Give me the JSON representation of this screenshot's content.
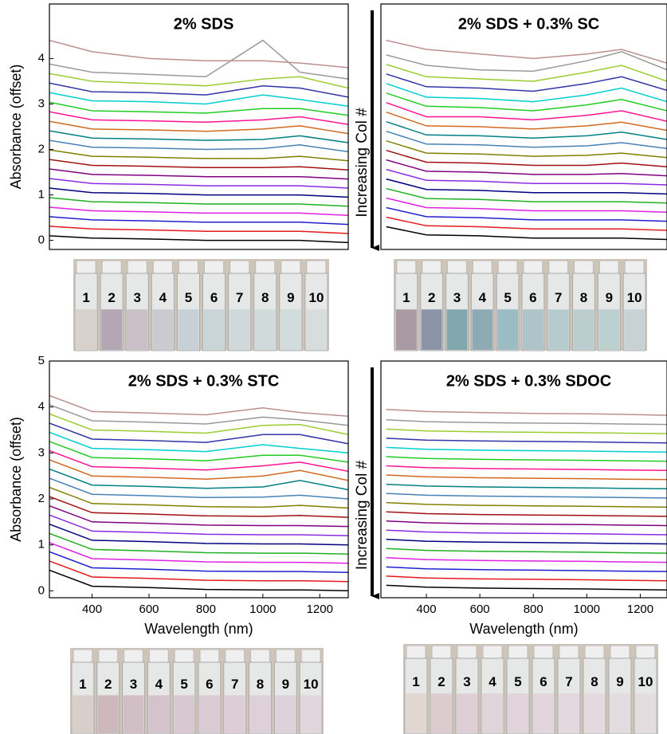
{
  "chart_data": [
    {
      "type": "line",
      "title": "2% SDS",
      "ylabel": "Absorbance (offset)",
      "xlim": [
        250,
        1300
      ],
      "ylim": [
        -0.2,
        5.2
      ],
      "yticks": [
        0,
        1,
        2,
        3,
        4
      ],
      "x": [
        250,
        400,
        600,
        800,
        1000,
        1130,
        1300
      ],
      "series": [
        {
          "color": "#000000",
          "values": [
            0.1,
            0.05,
            0.03,
            0,
            0,
            0,
            -0.05
          ]
        },
        {
          "color": "#e41a1c",
          "values": [
            0.31,
            0.25,
            0.23,
            0.2,
            0.2,
            0.2,
            0.15
          ]
        },
        {
          "color": "#1f1fd0",
          "values": [
            0.52,
            0.45,
            0.43,
            0.4,
            0.4,
            0.4,
            0.35
          ]
        },
        {
          "color": "#e020e0",
          "values": [
            0.73,
            0.65,
            0.63,
            0.6,
            0.6,
            0.6,
            0.55
          ]
        },
        {
          "color": "#20b020",
          "values": [
            0.94,
            0.85,
            0.83,
            0.8,
            0.8,
            0.8,
            0.75
          ]
        },
        {
          "color": "#000080",
          "values": [
            1.15,
            1.05,
            1.03,
            1.0,
            1.0,
            1.0,
            0.95
          ]
        },
        {
          "color": "#8a2be2",
          "values": [
            1.36,
            1.25,
            1.23,
            1.2,
            1.2,
            1.2,
            1.15
          ]
        },
        {
          "color": "#800080",
          "values": [
            1.57,
            1.45,
            1.43,
            1.4,
            1.4,
            1.4,
            1.35
          ]
        },
        {
          "color": "#a01010",
          "values": [
            1.78,
            1.65,
            1.63,
            1.6,
            1.6,
            1.62,
            1.55
          ]
        },
        {
          "color": "#808000",
          "values": [
            1.99,
            1.85,
            1.83,
            1.8,
            1.8,
            1.85,
            1.75
          ]
        },
        {
          "color": "#4682b4",
          "values": [
            2.2,
            2.05,
            2.03,
            2.0,
            2.02,
            2.1,
            1.95
          ]
        },
        {
          "color": "#008080",
          "values": [
            2.41,
            2.25,
            2.23,
            2.2,
            2.22,
            2.3,
            2.15
          ]
        },
        {
          "color": "#d2691e",
          "values": [
            2.62,
            2.45,
            2.43,
            2.4,
            2.45,
            2.52,
            2.35
          ]
        },
        {
          "color": "#ff1493",
          "values": [
            2.83,
            2.65,
            2.63,
            2.6,
            2.65,
            2.72,
            2.55
          ]
        },
        {
          "color": "#22cc22",
          "values": [
            3.04,
            2.85,
            2.83,
            2.8,
            2.9,
            2.9,
            2.75
          ]
        },
        {
          "color": "#00ced1",
          "values": [
            3.25,
            3.07,
            3.05,
            3.0,
            3.2,
            3.1,
            2.95
          ]
        },
        {
          "color": "#3333aa",
          "values": [
            3.46,
            3.27,
            3.25,
            3.2,
            3.4,
            3.35,
            3.15
          ]
        },
        {
          "color": "#9acd32",
          "values": [
            3.67,
            3.5,
            3.45,
            3.4,
            3.55,
            3.6,
            3.35
          ]
        },
        {
          "color": "#999999",
          "values": [
            3.88,
            3.7,
            3.65,
            3.6,
            4.4,
            3.7,
            3.55
          ]
        },
        {
          "color": "#bc8f8f",
          "values": [
            4.4,
            4.15,
            4.0,
            3.95,
            3.95,
            3.9,
            3.8
          ]
        }
      ]
    },
    {
      "type": "line",
      "title": "2% SDS + 0.3% SC",
      "annotation": "Increasing Col #",
      "xlim": [
        230,
        1300
      ],
      "ylim": [
        -0.2,
        5.2
      ],
      "x": [
        250,
        400,
        600,
        800,
        1000,
        1130,
        1300
      ],
      "series": [
        {
          "color": "#000000",
          "values": [
            0.3,
            0.12,
            0.1,
            0.05,
            0.05,
            0.05,
            0.02
          ]
        },
        {
          "color": "#e41a1c",
          "values": [
            0.51,
            0.32,
            0.3,
            0.25,
            0.25,
            0.25,
            0.22
          ]
        },
        {
          "color": "#1f1fd0",
          "values": [
            0.72,
            0.52,
            0.5,
            0.45,
            0.45,
            0.45,
            0.42
          ]
        },
        {
          "color": "#e020e0",
          "values": [
            0.93,
            0.72,
            0.7,
            0.65,
            0.65,
            0.65,
            0.62
          ]
        },
        {
          "color": "#20b020",
          "values": [
            1.14,
            0.92,
            0.9,
            0.85,
            0.85,
            0.85,
            0.82
          ]
        },
        {
          "color": "#000080",
          "values": [
            1.35,
            1.12,
            1.1,
            1.05,
            1.05,
            1.05,
            1.02
          ]
        },
        {
          "color": "#8a2be2",
          "values": [
            1.56,
            1.32,
            1.3,
            1.25,
            1.25,
            1.25,
            1.22
          ]
        },
        {
          "color": "#800080",
          "values": [
            1.77,
            1.52,
            1.5,
            1.45,
            1.45,
            1.47,
            1.42
          ]
        },
        {
          "color": "#a01010",
          "values": [
            1.98,
            1.72,
            1.7,
            1.65,
            1.65,
            1.7,
            1.62
          ]
        },
        {
          "color": "#808000",
          "values": [
            2.19,
            1.92,
            1.9,
            1.85,
            1.87,
            1.92,
            1.82
          ]
        },
        {
          "color": "#4682b4",
          "values": [
            2.4,
            2.12,
            2.1,
            2.05,
            2.08,
            2.15,
            2.02
          ]
        },
        {
          "color": "#008080",
          "values": [
            2.61,
            2.32,
            2.3,
            2.25,
            2.3,
            2.38,
            2.22
          ]
        },
        {
          "color": "#d2691e",
          "values": [
            2.82,
            2.52,
            2.5,
            2.45,
            2.52,
            2.6,
            2.42
          ]
        },
        {
          "color": "#ff1493",
          "values": [
            3.03,
            2.72,
            2.72,
            2.65,
            2.75,
            2.85,
            2.62
          ]
        },
        {
          "color": "#22cc22",
          "values": [
            3.24,
            2.95,
            2.92,
            2.85,
            2.98,
            3.1,
            2.85
          ]
        },
        {
          "color": "#00ced1",
          "values": [
            3.45,
            3.15,
            3.12,
            3.05,
            3.2,
            3.35,
            3.05
          ]
        },
        {
          "color": "#3333aa",
          "values": [
            3.66,
            3.38,
            3.35,
            3.28,
            3.45,
            3.6,
            3.3
          ]
        },
        {
          "color": "#9acd32",
          "values": [
            3.87,
            3.6,
            3.55,
            3.5,
            3.7,
            3.85,
            3.5
          ]
        },
        {
          "color": "#999999",
          "values": [
            4.08,
            3.85,
            3.75,
            3.72,
            3.95,
            4.15,
            3.75
          ]
        },
        {
          "color": "#bc8f8f",
          "values": [
            4.4,
            4.2,
            4.1,
            4.0,
            4.1,
            4.2,
            3.9
          ]
        }
      ]
    },
    {
      "type": "line",
      "title": "2% SDS + 0.3% STC",
      "ylabel": "Absorbance (offset)",
      "xlabel": "Wavelength (nm)",
      "xlim": [
        250,
        1300
      ],
      "ylim": [
        -0.15,
        5
      ],
      "yticks": [
        0,
        1,
        2,
        3,
        4,
        5
      ],
      "xticks": [
        400,
        600,
        800,
        1000,
        1200
      ],
      "x": [
        250,
        400,
        600,
        800,
        1000,
        1130,
        1300
      ],
      "series": [
        {
          "color": "#000000",
          "values": [
            0.45,
            0.1,
            0.07,
            0.03,
            0.02,
            0.02,
            0
          ]
        },
        {
          "color": "#e41a1c",
          "values": [
            0.65,
            0.3,
            0.27,
            0.23,
            0.22,
            0.22,
            0.2
          ]
        },
        {
          "color": "#1f1fd0",
          "values": [
            0.85,
            0.5,
            0.47,
            0.43,
            0.42,
            0.42,
            0.4
          ]
        },
        {
          "color": "#e020e0",
          "values": [
            1.05,
            0.7,
            0.67,
            0.63,
            0.62,
            0.62,
            0.6
          ]
        },
        {
          "color": "#20b020",
          "values": [
            1.25,
            0.9,
            0.87,
            0.83,
            0.82,
            0.82,
            0.8
          ]
        },
        {
          "color": "#000080",
          "values": [
            1.45,
            1.1,
            1.07,
            1.03,
            1.02,
            1.02,
            1.0
          ]
        },
        {
          "color": "#8a2be2",
          "values": [
            1.65,
            1.3,
            1.27,
            1.23,
            1.22,
            1.22,
            1.2
          ]
        },
        {
          "color": "#800080",
          "values": [
            1.85,
            1.5,
            1.47,
            1.43,
            1.42,
            1.42,
            1.4
          ]
        },
        {
          "color": "#a01010",
          "values": [
            2.05,
            1.7,
            1.67,
            1.63,
            1.62,
            1.64,
            1.6
          ]
        },
        {
          "color": "#808000",
          "values": [
            2.25,
            1.9,
            1.87,
            1.83,
            1.82,
            1.86,
            1.8
          ]
        },
        {
          "color": "#4682b4",
          "values": [
            2.45,
            2.1,
            2.07,
            2.03,
            2.04,
            2.08,
            2.0
          ]
        },
        {
          "color": "#008080",
          "values": [
            2.65,
            2.3,
            2.27,
            2.23,
            2.26,
            2.4,
            2.2
          ]
        },
        {
          "color": "#d2691e",
          "values": [
            2.85,
            2.5,
            2.47,
            2.43,
            2.5,
            2.62,
            2.4
          ]
        },
        {
          "color": "#ff1493",
          "values": [
            3.05,
            2.7,
            2.67,
            2.63,
            2.72,
            2.8,
            2.6
          ]
        },
        {
          "color": "#22cc22",
          "values": [
            3.25,
            2.9,
            2.87,
            2.83,
            2.95,
            2.95,
            2.8
          ]
        },
        {
          "color": "#00ced1",
          "values": [
            3.45,
            3.1,
            3.07,
            3.03,
            3.18,
            3.1,
            3.0
          ]
        },
        {
          "color": "#3333aa",
          "values": [
            3.65,
            3.3,
            3.27,
            3.23,
            3.4,
            3.4,
            3.2
          ]
        },
        {
          "color": "#9acd32",
          "values": [
            3.85,
            3.5,
            3.47,
            3.43,
            3.6,
            3.62,
            3.4
          ]
        },
        {
          "color": "#999999",
          "values": [
            4.05,
            3.7,
            3.67,
            3.63,
            3.78,
            3.72,
            3.6
          ]
        },
        {
          "color": "#bc8f8f",
          "values": [
            4.25,
            3.9,
            3.87,
            3.83,
            3.98,
            3.88,
            3.8
          ]
        }
      ]
    },
    {
      "type": "line",
      "title": "2% SDS + 0.3% SDOC",
      "annotation": "Increasing Col #",
      "xlabel": "Wavelength (nm)",
      "xlim": [
        230,
        1300
      ],
      "ylim": [
        -0.15,
        5
      ],
      "xticks": [
        400,
        600,
        800,
        1000,
        1200
      ],
      "x": [
        250,
        400,
        600,
        800,
        1000,
        1130,
        1300
      ],
      "series": [
        {
          "color": "#000000",
          "values": [
            0.12,
            0.08,
            0.06,
            0.05,
            0.04,
            0.03,
            0.02
          ]
        },
        {
          "color": "#e41a1c",
          "values": [
            0.32,
            0.28,
            0.26,
            0.25,
            0.24,
            0.23,
            0.22
          ]
        },
        {
          "color": "#1f1fd0",
          "values": [
            0.52,
            0.48,
            0.46,
            0.45,
            0.44,
            0.43,
            0.42
          ]
        },
        {
          "color": "#e020e0",
          "values": [
            0.72,
            0.68,
            0.66,
            0.65,
            0.64,
            0.63,
            0.62
          ]
        },
        {
          "color": "#20b020",
          "values": [
            0.92,
            0.88,
            0.86,
            0.85,
            0.84,
            0.83,
            0.82
          ]
        },
        {
          "color": "#000080",
          "values": [
            1.12,
            1.08,
            1.06,
            1.05,
            1.04,
            1.03,
            1.02
          ]
        },
        {
          "color": "#8a2be2",
          "values": [
            1.32,
            1.28,
            1.26,
            1.25,
            1.24,
            1.23,
            1.22
          ]
        },
        {
          "color": "#800080",
          "values": [
            1.52,
            1.48,
            1.46,
            1.45,
            1.44,
            1.43,
            1.42
          ]
        },
        {
          "color": "#a01010",
          "values": [
            1.72,
            1.68,
            1.66,
            1.65,
            1.64,
            1.63,
            1.62
          ]
        },
        {
          "color": "#808000",
          "values": [
            1.92,
            1.88,
            1.86,
            1.85,
            1.84,
            1.83,
            1.82
          ]
        },
        {
          "color": "#4682b4",
          "values": [
            2.12,
            2.08,
            2.06,
            2.05,
            2.04,
            2.03,
            2.02
          ]
        },
        {
          "color": "#008080",
          "values": [
            2.32,
            2.28,
            2.26,
            2.25,
            2.24,
            2.23,
            2.22
          ]
        },
        {
          "color": "#d2691e",
          "values": [
            2.52,
            2.48,
            2.46,
            2.45,
            2.44,
            2.43,
            2.42
          ]
        },
        {
          "color": "#ff1493",
          "values": [
            2.72,
            2.68,
            2.66,
            2.65,
            2.64,
            2.63,
            2.62
          ]
        },
        {
          "color": "#22cc22",
          "values": [
            2.92,
            2.88,
            2.86,
            2.85,
            2.84,
            2.83,
            2.82
          ]
        },
        {
          "color": "#00ced1",
          "values": [
            3.12,
            3.08,
            3.06,
            3.05,
            3.04,
            3.03,
            3.02
          ]
        },
        {
          "color": "#3333aa",
          "values": [
            3.32,
            3.28,
            3.26,
            3.25,
            3.24,
            3.23,
            3.22
          ]
        },
        {
          "color": "#9acd32",
          "values": [
            3.52,
            3.48,
            3.46,
            3.45,
            3.44,
            3.43,
            3.42
          ]
        },
        {
          "color": "#999999",
          "values": [
            3.72,
            3.68,
            3.66,
            3.65,
            3.64,
            3.63,
            3.62
          ]
        },
        {
          "color": "#bc8f8f",
          "values": [
            3.95,
            3.9,
            3.88,
            3.86,
            3.85,
            3.84,
            3.82
          ]
        }
      ]
    }
  ],
  "photos": [
    {
      "labels": [
        "1",
        "2",
        "3",
        "4",
        "5",
        "6",
        "7",
        "8",
        "9",
        "10"
      ]
    },
    {
      "labels": [
        "1",
        "2",
        "3",
        "4",
        "5",
        "6",
        "7",
        "8",
        "9",
        "10"
      ]
    },
    {
      "labels": [
        "1",
        "2",
        "3",
        "4",
        "5",
        "6",
        "7",
        "8",
        "9",
        "10"
      ]
    },
    {
      "labels": [
        "1",
        "2",
        "3",
        "4",
        "5",
        "6",
        "7",
        "8",
        "9",
        "10"
      ]
    }
  ]
}
